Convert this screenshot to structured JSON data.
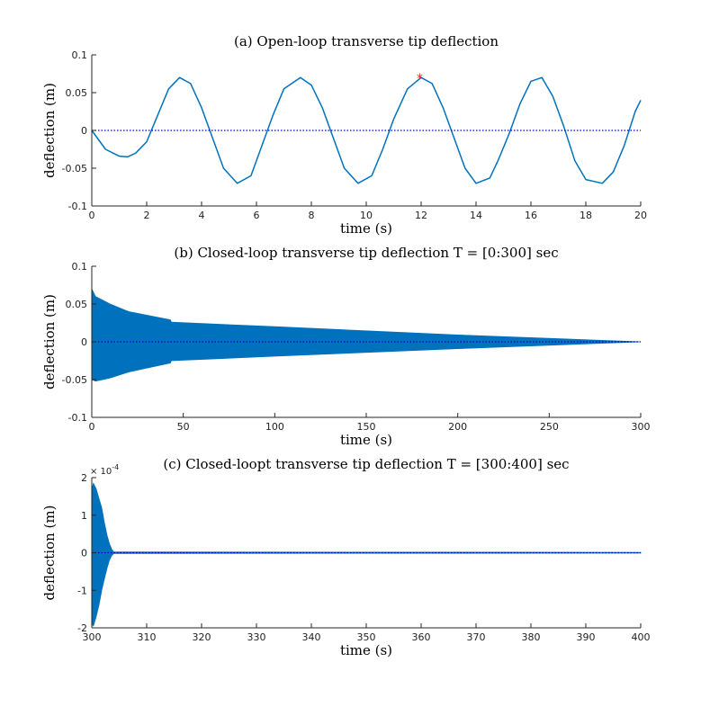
{
  "chart_data": [
    {
      "type": "line",
      "title": "(a) Open-loop transverse tip deflection",
      "xlabel": "time (s)",
      "ylabel": "deflection (m)",
      "xlim": [
        0,
        20
      ],
      "ylim": [
        -0.1,
        0.1
      ],
      "xticks": [
        "0",
        "2",
        "4",
        "6",
        "8",
        "10",
        "12",
        "14",
        "16",
        "18",
        "20"
      ],
      "yticks": [
        "-0.1",
        "-0.05",
        "0",
        "0.05",
        "0.1"
      ],
      "series_color": "#0072BD",
      "reference_line": {
        "y": 0,
        "style": "dotted",
        "color": "#0000CC"
      },
      "marker": {
        "x": 11.95,
        "y": 0.07,
        "symbol": "*",
        "color": "#E0202A"
      },
      "series": [
        {
          "x": [
            0,
            0.5,
            1.0,
            1.3,
            1.6,
            2.0,
            2.4,
            2.8,
            3.2,
            3.6,
            4.0,
            4.4,
            4.8,
            5.3,
            5.8,
            6.2,
            6.6,
            7.0,
            7.6,
            8.0,
            8.4,
            8.8,
            9.2,
            9.7,
            10.2,
            10.6,
            11.0,
            11.5,
            12.0,
            12.4,
            12.8,
            13.2,
            13.6,
            14.0,
            14.5,
            14.8,
            15.2,
            15.6,
            16.0,
            16.4,
            16.8,
            17.2,
            17.6,
            18.0,
            18.6,
            19.0,
            19.4,
            19.8,
            20.0
          ],
          "y": [
            0,
            -0.025,
            -0.034,
            -0.035,
            -0.03,
            -0.015,
            0.02,
            0.055,
            0.07,
            0.062,
            0.03,
            -0.01,
            -0.05,
            -0.07,
            -0.06,
            -0.02,
            0.02,
            0.055,
            0.07,
            0.06,
            0.03,
            -0.01,
            -0.05,
            -0.07,
            -0.06,
            -0.025,
            0.015,
            0.055,
            0.07,
            0.062,
            0.03,
            -0.01,
            -0.05,
            -0.07,
            -0.063,
            -0.04,
            -0.005,
            0.035,
            0.065,
            0.07,
            0.045,
            0.005,
            -0.04,
            -0.065,
            -0.07,
            -0.055,
            -0.02,
            0.025,
            0.04
          ]
        }
      ]
    },
    {
      "type": "area",
      "title": "(b) Closed-loop transverse tip deflection T = [0:300] sec",
      "xlabel": "time (s)",
      "ylabel": "deflection (m)",
      "xlim": [
        0,
        300
      ],
      "ylim": [
        -0.1,
        0.1
      ],
      "xticks": [
        "0",
        "50",
        "100",
        "150",
        "200",
        "250",
        "300"
      ],
      "yticks": [
        "-0.1",
        "-0.05",
        "0",
        "0.05",
        "0.1"
      ],
      "series_color": "#0072BD",
      "reference_line": {
        "y": 0,
        "style": "dotted",
        "color": "#0000CC"
      },
      "envelope": {
        "x": [
          0,
          2,
          10,
          20,
          43,
          43.5,
          100,
          200,
          300
        ],
        "upper": [
          0.07,
          0.06,
          0.05,
          0.04,
          0.029,
          0.026,
          0.02,
          0.009,
          0
        ],
        "lower": [
          -0.05,
          -0.052,
          -0.048,
          -0.04,
          -0.028,
          -0.025,
          -0.019,
          -0.009,
          0
        ]
      }
    },
    {
      "type": "area",
      "title": "(c) Closed-loopt transverse tip deflection T = [300:400] sec",
      "xlabel": "time (s)",
      "ylabel": "deflection (m)",
      "xlim": [
        300,
        400
      ],
      "ylim": [
        -2,
        2
      ],
      "y_exponent": "× 10^-4",
      "xticks": [
        "300",
        "310",
        "320",
        "330",
        "340",
        "350",
        "360",
        "370",
        "380",
        "390",
        "400"
      ],
      "yticks": [
        "-2",
        "-1",
        "0",
        "1",
        "2"
      ],
      "series_color": "#0072BD",
      "reference_line": {
        "y": 0,
        "style": "dotted",
        "color": "#0000CC"
      },
      "envelope": {
        "x": [
          300,
          300.3,
          300.8,
          301.3,
          301.8,
          302.3,
          302.8,
          303.2,
          303.6,
          304,
          400
        ],
        "upper": [
          1.7,
          1.85,
          1.7,
          1.45,
          1.2,
          0.8,
          0.45,
          0.25,
          0.1,
          0.02,
          0.01
        ],
        "lower": [
          -1.9,
          -1.95,
          -1.7,
          -1.4,
          -1.0,
          -0.7,
          -0.4,
          -0.2,
          -0.08,
          -0.02,
          -0.01
        ]
      }
    }
  ]
}
